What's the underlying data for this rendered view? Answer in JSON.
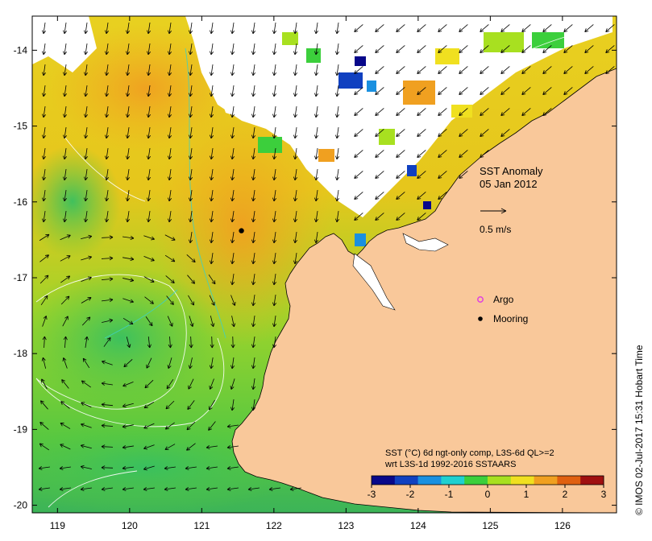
{
  "map": {
    "title": "SST Anomaly",
    "date": "05 Jan 2012",
    "velocity_scale_label": "0.5 m/s",
    "x_ticks": [
      "119",
      "120",
      "121",
      "122",
      "123",
      "124",
      "125",
      "126"
    ],
    "y_ticks": [
      "-14",
      "-15",
      "-16",
      "-17",
      "-18",
      "-19",
      "-20"
    ],
    "lon_range": [
      118.65,
      126.75
    ],
    "lat_range": [
      -20.1,
      -13.55
    ],
    "land_color": "#f9c89a",
    "no_data_color": "#ffffff"
  },
  "legend": {
    "argo_label": "Argo",
    "argo_color": "#e040e0",
    "mooring_label": "Mooring",
    "mooring_color": "#000000"
  },
  "mooring": {
    "lon": 121.55,
    "lat": -16.38
  },
  "colorbar": {
    "caption_line1": "SST (°C) 6d ngt-only comp, L3S-6d QL>=2",
    "caption_line2": "wrt L3S-1d 1992-2016 SSTAARS",
    "ticks": [
      "-3",
      "-2",
      "-1",
      "0",
      "1",
      "2",
      "3"
    ],
    "range": [
      -3,
      3
    ],
    "colors": [
      "#08088a",
      "#1040c0",
      "#1a90e0",
      "#20d0d0",
      "#3ccf3c",
      "#a8e020",
      "#f0e020",
      "#f0a020",
      "#e06010",
      "#a01010"
    ]
  },
  "footer": {
    "credit": "© IMOS 02-Jul-2017 15:31 Hobart Time"
  }
}
